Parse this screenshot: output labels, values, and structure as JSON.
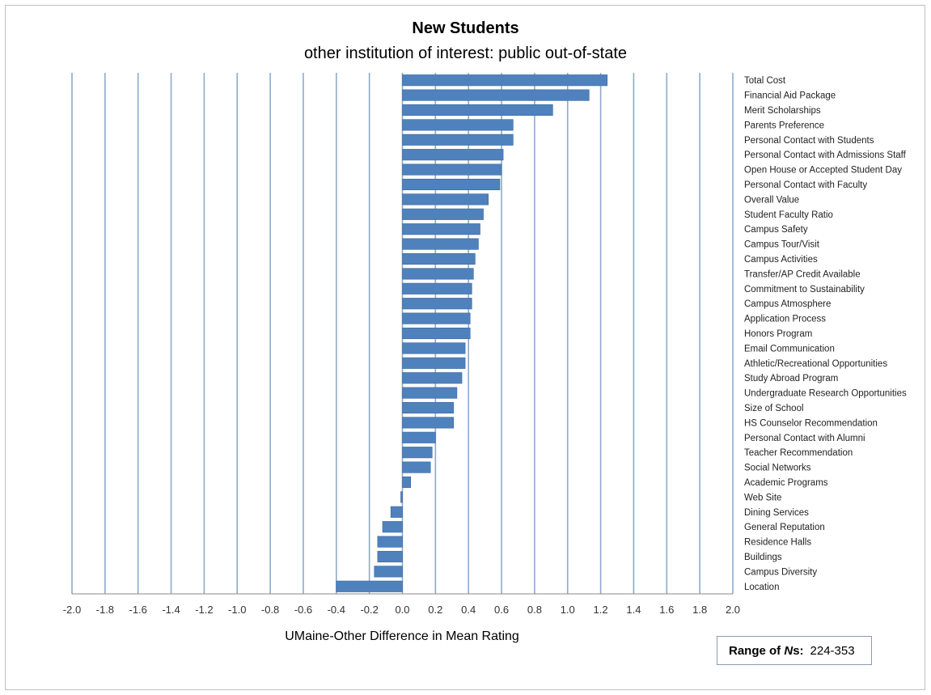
{
  "chart_data": {
    "type": "bar",
    "orientation": "horizontal",
    "title": "New Students",
    "subtitle": "other institution of interest: public out-of-state",
    "xlabel": "UMaine-Other Difference in Mean Rating",
    "xlim": [
      -2.0,
      2.0
    ],
    "xticks": [
      "-2.0",
      "-1.8",
      "-1.6",
      "-1.4",
      "-1.2",
      "-1.0",
      "-0.8",
      "-0.6",
      "-0.4",
      "-0.2",
      "0.0",
      "0.2",
      "0.4",
      "0.6",
      "0.8",
      "1.0",
      "1.2",
      "1.4",
      "1.6",
      "1.8",
      "2.0"
    ],
    "grid": "vertical",
    "bar_color": "#4f81bd",
    "grid_color": "#8eaacb",
    "categories": [
      "Total Cost",
      "Financial Aid Package",
      "Merit Scholarships",
      "Parents Preference",
      "Personal Contact with Students",
      "Personal Contact with Admissions Staff",
      "Open House or Accepted Student Day",
      "Personal Contact with Faculty",
      "Overall Value",
      "Student Faculty Ratio",
      "Campus Safety",
      "Campus Tour/Visit",
      "Campus Activities",
      "Transfer/AP Credit Available",
      "Commitment to Sustainability",
      "Campus Atmosphere",
      "Application Process",
      "Honors Program",
      "Email Communication",
      "Athletic/Recreational Opportunities",
      "Study Abroad Program",
      "Undergraduate Research Opportunities",
      "Size of School",
      "HS Counselor Recommendation",
      "Personal Contact with Alumni",
      "Teacher Recommendation",
      "Social Networks",
      "Academic Programs",
      "Web Site",
      "Dining Services",
      "General Reputation",
      "Residence Halls",
      "Buildings",
      "Campus Diversity",
      "Location"
    ],
    "values": [
      1.24,
      1.13,
      0.91,
      0.67,
      0.67,
      0.61,
      0.6,
      0.59,
      0.52,
      0.49,
      0.47,
      0.46,
      0.44,
      0.43,
      0.42,
      0.42,
      0.41,
      0.41,
      0.38,
      0.38,
      0.36,
      0.33,
      0.31,
      0.31,
      0.2,
      0.18,
      0.17,
      0.05,
      -0.01,
      -0.07,
      -0.12,
      -0.15,
      -0.15,
      -0.17,
      -0.4
    ]
  },
  "range_box": {
    "label": "Range of ",
    "label_italic": "N",
    "label_suffix": "s:",
    "value": "224-353"
  }
}
